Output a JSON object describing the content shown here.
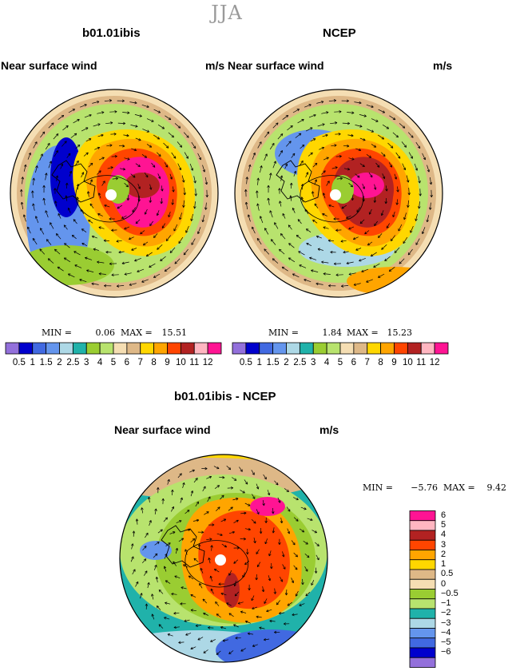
{
  "season": "JJA",
  "panels": [
    {
      "title": "b01.01ibis",
      "left_label": "Near surface wind",
      "right_label": "m/s",
      "min_label": "MIN =",
      "min_value": "0.06",
      "max_label": "MAX =",
      "max_value": "15.51"
    },
    {
      "title": "NCEP",
      "left_label": "Near surface wind",
      "right_label": "m/s",
      "min_label": "MIN =",
      "min_value": "1.84",
      "max_label": "MAX =",
      "max_value": "15.23"
    },
    {
      "title": "b01.01ibis - NCEP",
      "left_label": "Near surface wind",
      "right_label": "m/s",
      "min_label": "MIN =",
      "min_value": "−5.76",
      "max_label": "MAX =",
      "max_value": "9.42"
    }
  ],
  "colorbar_horizontal": {
    "labels": [
      "0.5",
      "1",
      "1.5",
      "2",
      "2.5",
      "3",
      "4",
      "5",
      "6",
      "7",
      "8",
      "9",
      "10",
      "11",
      "12"
    ],
    "colors": [
      "#9370db",
      "#0000cd",
      "#4169e1",
      "#6495ed",
      "#add8e6",
      "#20b2aa",
      "#9acd32",
      "#b8e36e",
      "#f5deb3",
      "#deb887",
      "#ffd700",
      "#ffa500",
      "#ff4500",
      "#b22222",
      "#ffb6c1",
      "#ff1493"
    ]
  },
  "colorbar_vertical": {
    "labels": [
      "6",
      "5",
      "4",
      "3",
      "2",
      "1",
      "0.5",
      "0",
      "−0.5",
      "−1",
      "−2",
      "−3",
      "−4",
      "−5",
      "−6"
    ],
    "colors": [
      "#ff1493",
      "#ffb6c1",
      "#b22222",
      "#ff4500",
      "#ffa500",
      "#ffd700",
      "#deb887",
      "#f5deb3",
      "#9acd32",
      "#b8e36e",
      "#20b2aa",
      "#add8e6",
      "#6495ed",
      "#4169e1",
      "#0000cd",
      "#9370db"
    ]
  },
  "chart_data": [
    {
      "type": "heatmap",
      "title": "b01.01ibis",
      "subtitle": "Near surface wind",
      "units": "m/s",
      "projection": "south polar stereographic",
      "min": 0.06,
      "max": 15.51,
      "contour_levels": [
        0.5,
        1,
        1.5,
        2,
        2.5,
        3,
        4,
        5,
        6,
        7,
        8,
        9,
        10,
        11,
        12
      ]
    },
    {
      "type": "heatmap",
      "title": "NCEP",
      "subtitle": "Near surface wind",
      "units": "m/s",
      "projection": "south polar stereographic",
      "min": 1.84,
      "max": 15.23,
      "contour_levels": [
        0.5,
        1,
        1.5,
        2,
        2.5,
        3,
        4,
        5,
        6,
        7,
        8,
        9,
        10,
        11,
        12
      ]
    },
    {
      "type": "heatmap",
      "title": "b01.01ibis - NCEP",
      "subtitle": "Near surface wind",
      "units": "m/s",
      "projection": "south polar stereographic",
      "min": -5.76,
      "max": 9.42,
      "contour_levels": [
        -6,
        -5,
        -4,
        -3,
        -2,
        -1,
        -0.5,
        0,
        0.5,
        1,
        2,
        3,
        4,
        5,
        6
      ]
    }
  ]
}
